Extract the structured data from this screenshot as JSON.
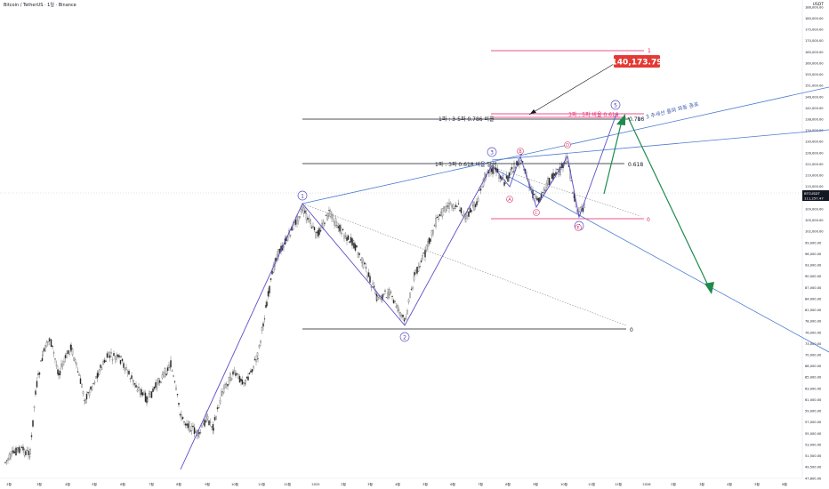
{
  "header": {
    "title": "Bitcoin / TetherUS · 1일 · Binance",
    "currency": "USDT"
  },
  "price_tag": {
    "label": "BTCUSDT",
    "value": "111,257.47",
    "sub": "13:25:51"
  },
  "target_label": "140,173.79",
  "colors": {
    "up": "#26a69a",
    "down": "#ef5350",
    "blue": "#4a7bd0",
    "purple": "#5b4ec7",
    "pink": "#e91e63",
    "green": "#1e8a4c",
    "target_bg": "#e53935"
  },
  "chart_data": {
    "type": "candlestick",
    "y_ticks": [
      "186,000.00",
      "180,000.00",
      "175,000.00",
      "170,000.00",
      "165,000.00",
      "160,000.00",
      "155,000.00",
      "151,000.00",
      "146,000.00",
      "142,000.00",
      "138,000.00",
      "134,000.00",
      "130,000.00",
      "126,000.00",
      "122,000.00",
      "119,000.00",
      "115,000.00",
      "112,000.00",
      "109,000.00",
      "105,000.00",
      "102,000.00",
      "99,000.00",
      "96,000.00",
      "93,000.00",
      "90,000.00",
      "87,000.00",
      "84,000.00",
      "81,000.00",
      "78,000.00",
      "76,000.00",
      "73,000.00",
      "70,000.00",
      "68,000.00",
      "65,000.00",
      "63,000.00",
      "61,000.00",
      "59,000.00",
      "57,000.00",
      "55,000.00",
      "53,000.00",
      "51,500.00",
      "49,500.00",
      "47,600.00"
    ],
    "x_ticks": [
      "2월",
      "3월",
      "4월",
      "5월",
      "6월",
      "7월",
      "8월",
      "9월",
      "10월",
      "11월",
      "12월",
      "2025",
      "2월",
      "3월",
      "4월",
      "5월",
      "6월",
      "7월",
      "8월",
      "9월",
      "10월",
      "11월",
      "12월",
      "2026",
      "2월",
      "3월",
      "4월",
      "5월",
      "6월"
    ],
    "fib_levels": [
      {
        "label": "1",
        "price": 172000
      },
      {
        "label": "3파 : 5파 비율 0.618",
        "price": 138500
      },
      {
        "label": "0.786",
        "price": 137000
      },
      {
        "label": "1파 : 3-5파 0.786 비율",
        "price": 137000
      },
      {
        "label": "1파 : 3파 0.618 비율 달성",
        "price": 117500
      },
      {
        "label": "0.618",
        "price": 117500
      },
      {
        "label": "0",
        "price": 100500
      },
      {
        "label": "0",
        "price": 74300
      }
    ],
    "wave_labels": [
      "1",
      "2",
      "3",
      "4",
      "5"
    ],
    "sub_wave_labels": [
      "A",
      "B",
      "C",
      "D",
      "E"
    ],
    "annotation": "1 - 3 추세선 돌파 파동 종료"
  }
}
